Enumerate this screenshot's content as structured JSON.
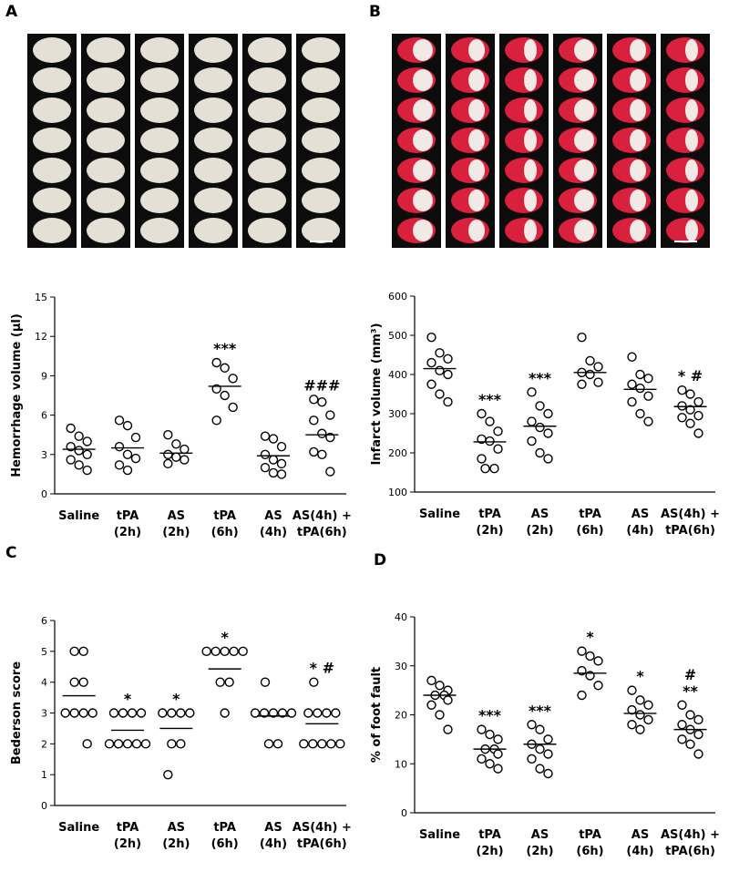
{
  "chart_data": [
    {
      "type": "scatter",
      "panel": "A",
      "ylabel": "Hemorrhage volume (µl)",
      "ylim": [
        0,
        15
      ],
      "yticks": [
        0,
        3,
        6,
        9,
        12,
        15
      ],
      "color": "#000000",
      "groups": [
        {
          "label": [
            "Saline"
          ],
          "values": [
            5.0,
            4.4,
            4.0,
            3.6,
            3.3,
            3.0,
            2.6,
            2.2,
            1.8
          ],
          "mean": 3.4,
          "annotations": []
        },
        {
          "label": [
            "tPA",
            "(2h)"
          ],
          "values": [
            5.6,
            5.2,
            4.3,
            3.6,
            3.0,
            2.7,
            2.2,
            1.8
          ],
          "mean": 3.5,
          "annotations": []
        },
        {
          "label": [
            "AS",
            "(2h)"
          ],
          "values": [
            4.5,
            3.8,
            3.4,
            3.0,
            2.8,
            2.6,
            2.3
          ],
          "mean": 3.1,
          "annotations": []
        },
        {
          "label": [
            "tPA",
            "(6h)"
          ],
          "values": [
            10.0,
            9.6,
            8.8,
            8.0,
            7.5,
            6.6,
            5.6
          ],
          "mean": 8.2,
          "annotations": [
            "***"
          ]
        },
        {
          "label": [
            "AS",
            "(4h)"
          ],
          "values": [
            4.4,
            4.2,
            3.6,
            3.0,
            2.6,
            2.3,
            2.0,
            1.6,
            1.5
          ],
          "mean": 2.9,
          "annotations": []
        },
        {
          "label": [
            "AS(4h) +",
            "tPA(6h)"
          ],
          "values": [
            7.2,
            7.0,
            6.0,
            5.6,
            4.6,
            4.3,
            3.2,
            3.0,
            1.7
          ],
          "mean": 4.5,
          "annotations": [
            "###"
          ]
        }
      ]
    },
    {
      "type": "scatter",
      "panel": "B",
      "ylabel": "Infarct volume (mm³)",
      "ylim": [
        100,
        600
      ],
      "yticks": [
        100,
        200,
        300,
        400,
        500,
        600
      ],
      "color": "#000000",
      "groups": [
        {
          "label": [
            "Saline"
          ],
          "values": [
            495,
            455,
            440,
            430,
            410,
            400,
            375,
            350,
            330
          ],
          "mean": 415,
          "annotations": []
        },
        {
          "label": [
            "tPA",
            "(2h)"
          ],
          "values": [
            300,
            280,
            255,
            235,
            230,
            210,
            185,
            160,
            160
          ],
          "mean": 228,
          "annotations": [
            "***"
          ]
        },
        {
          "label": [
            "AS",
            "(2h)"
          ],
          "values": [
            355,
            320,
            300,
            280,
            265,
            250,
            230,
            200,
            185
          ],
          "mean": 268,
          "annotations": [
            "***"
          ]
        },
        {
          "label": [
            "tPA",
            "(6h)"
          ],
          "values": [
            495,
            435,
            420,
            405,
            400,
            380,
            375
          ],
          "mean": 405,
          "annotations": []
        },
        {
          "label": [
            "AS",
            "(4h)"
          ],
          "values": [
            445,
            400,
            390,
            375,
            365,
            345,
            330,
            300,
            280
          ],
          "mean": 362,
          "annotations": []
        },
        {
          "label": [
            "AS(4h) +",
            "tPA(6h)"
          ],
          "values": [
            360,
            350,
            330,
            320,
            310,
            295,
            290,
            275,
            250
          ],
          "mean": 318,
          "annotations": [
            "* #"
          ]
        }
      ]
    },
    {
      "type": "scatter",
      "panel": "C",
      "ylabel": "Bederson score",
      "ylim": [
        0,
        6
      ],
      "yticks": [
        0,
        1,
        2,
        3,
        4,
        5,
        6
      ],
      "color": "#000000",
      "groups": [
        {
          "label": [
            "Saline"
          ],
          "values": [
            5,
            5,
            4,
            4,
            3,
            3,
            3,
            3,
            2
          ],
          "mean": 3.56,
          "annotations": []
        },
        {
          "label": [
            "tPA",
            "(2h)"
          ],
          "values": [
            3,
            3,
            3,
            3,
            2,
            2,
            2,
            2,
            2
          ],
          "mean": 2.44,
          "annotations": [
            "*"
          ]
        },
        {
          "label": [
            "AS",
            "(2h)"
          ],
          "values": [
            3,
            3,
            3,
            3,
            2,
            2,
            1
          ],
          "mean": 2.5,
          "annotations": [
            "*"
          ]
        },
        {
          "label": [
            "tPA",
            "(6h)"
          ],
          "values": [
            5,
            5,
            5,
            5,
            5,
            4,
            4,
            3
          ],
          "mean": 4.43,
          "annotations": [
            "*"
          ]
        },
        {
          "label": [
            "AS",
            "(4h)"
          ],
          "values": [
            4,
            3,
            3,
            3,
            3,
            3,
            2,
            2
          ],
          "mean": 2.9,
          "annotations": []
        },
        {
          "label": [
            "AS(4h) +",
            "tPA(6h)"
          ],
          "values": [
            4,
            3,
            3,
            3,
            3,
            2,
            2,
            2,
            2,
            2
          ],
          "mean": 2.65,
          "annotations": [
            "* #"
          ]
        }
      ]
    },
    {
      "type": "scatter",
      "panel": "D",
      "ylabel": "% of foot fault",
      "ylim": [
        0,
        40
      ],
      "yticks": [
        0,
        10,
        20,
        30,
        40
      ],
      "color": "#000000",
      "groups": [
        {
          "label": [
            "Saline"
          ],
          "values": [
            27,
            26,
            25,
            24,
            24,
            23,
            22,
            20,
            17
          ],
          "mean": 24,
          "annotations": []
        },
        {
          "label": [
            "tPA",
            "(2h)"
          ],
          "values": [
            17,
            16,
            15,
            13,
            13,
            12,
            11,
            10,
            9
          ],
          "mean": 13,
          "annotations": [
            "***"
          ]
        },
        {
          "label": [
            "AS",
            "(2h)"
          ],
          "values": [
            18,
            17,
            15,
            14,
            13,
            12,
            11,
            9,
            8
          ],
          "mean": 14,
          "annotations": [
            "***"
          ]
        },
        {
          "label": [
            "tPA",
            "(6h)"
          ],
          "values": [
            33,
            32,
            31,
            29,
            28,
            26,
            24
          ],
          "mean": 28.5,
          "annotations": [
            "*"
          ]
        },
        {
          "label": [
            "AS",
            "(4h)"
          ],
          "values": [
            25,
            23,
            22,
            21,
            20,
            19,
            18,
            17
          ],
          "mean": 20.3,
          "annotations": [
            "*"
          ]
        },
        {
          "label": [
            "AS(4h) +",
            "tPA(6h)"
          ],
          "values": [
            22,
            20,
            19,
            18,
            17,
            16,
            15,
            14,
            12
          ],
          "mean": 17,
          "annotations": [
            "**",
            "#"
          ]
        }
      ]
    }
  ]
}
